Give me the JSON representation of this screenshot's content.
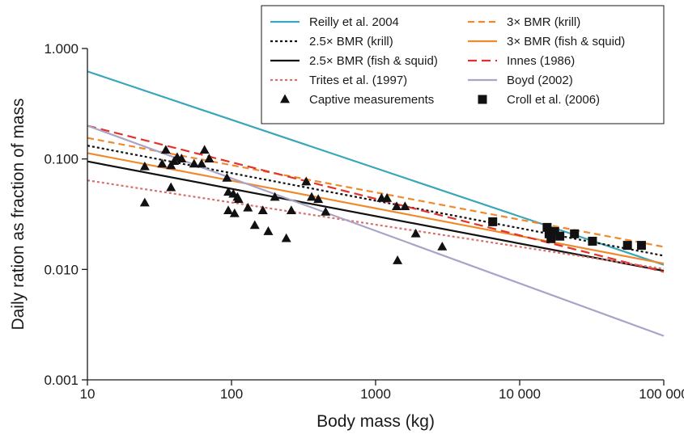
{
  "chart_data": {
    "type": "line",
    "x_scale": "log",
    "y_scale": "log",
    "xlim": [
      10,
      100000
    ],
    "ylim": [
      0.001,
      1.0
    ],
    "xlabel": "Body mass (kg)",
    "ylabel": "Daily ration as fraction of mass",
    "x_ticks": [
      {
        "value": 10,
        "label": "10"
      },
      {
        "value": 100,
        "label": "100"
      },
      {
        "value": 1000,
        "label": "1000"
      },
      {
        "value": 10000,
        "label": "10 000"
      },
      {
        "value": 100000,
        "label": "100 000"
      }
    ],
    "y_ticks": [
      {
        "value": 0.001,
        "label": "0.001"
      },
      {
        "value": 0.01,
        "label": "0.010"
      },
      {
        "value": 0.1,
        "label": "0.100"
      },
      {
        "value": 1.0,
        "label": "1.000"
      }
    ],
    "grid": false,
    "legend_position": "top-right",
    "series": [
      {
        "name": "Reilly et al. 2004",
        "kind": "line",
        "color": "#3aa6b9",
        "dash": "solid",
        "x": [
          10,
          100000
        ],
        "y": [
          0.62,
          0.011
        ]
      },
      {
        "name": "3× BMR (krill)",
        "kind": "line",
        "color": "#ef8a2c",
        "dash": "dashed",
        "x": [
          10,
          100000
        ],
        "y": [
          0.155,
          0.016
        ]
      },
      {
        "name": "2.5× BMR (krill)",
        "kind": "line",
        "color": "#111111",
        "dash": "dotted",
        "x": [
          10,
          100000
        ],
        "y": [
          0.132,
          0.0133
        ]
      },
      {
        "name": "3× BMR (fish & squid)",
        "kind": "line",
        "color": "#ef8a2c",
        "dash": "solid",
        "x": [
          10,
          100000
        ],
        "y": [
          0.113,
          0.0113
        ]
      },
      {
        "name": "2.5× BMR (fish & squid)",
        "kind": "line",
        "color": "#111111",
        "dash": "solid",
        "x": [
          10,
          100000
        ],
        "y": [
          0.095,
          0.0097
        ]
      },
      {
        "name": "Innes (1986)",
        "kind": "line",
        "color": "#e2332b",
        "dash": "longdash",
        "x": [
          10,
          100000
        ],
        "y": [
          0.2,
          0.0095
        ]
      },
      {
        "name": "Trites et al. (1997)",
        "kind": "line",
        "color": "#d9706b",
        "dash": "dotted",
        "x": [
          10,
          100000
        ],
        "y": [
          0.064,
          0.0101
        ]
      },
      {
        "name": "Boyd (2002)",
        "kind": "line",
        "color": "#a9a3c8",
        "dash": "solid",
        "x": [
          10,
          100000
        ],
        "y": [
          0.2,
          0.0025
        ]
      },
      {
        "name": "Captive measurements",
        "kind": "scatter",
        "marker": "triangle",
        "color": "#111111",
        "points": [
          [
            25,
            0.085
          ],
          [
            25,
            0.04
          ],
          [
            33,
            0.09
          ],
          [
            35,
            0.12
          ],
          [
            38,
            0.087
          ],
          [
            40,
            0.095
          ],
          [
            38,
            0.055
          ],
          [
            42,
            0.103
          ],
          [
            45,
            0.1
          ],
          [
            55,
            0.09
          ],
          [
            62,
            0.09
          ],
          [
            65,
            0.12
          ],
          [
            70,
            0.1
          ],
          [
            93,
            0.067
          ],
          [
            95,
            0.05
          ],
          [
            95,
            0.034
          ],
          [
            103,
            0.048
          ],
          [
            105,
            0.032
          ],
          [
            110,
            0.045
          ],
          [
            112,
            0.043
          ],
          [
            130,
            0.036
          ],
          [
            145,
            0.025
          ],
          [
            165,
            0.034
          ],
          [
            180,
            0.022
          ],
          [
            200,
            0.045
          ],
          [
            240,
            0.019
          ],
          [
            260,
            0.034
          ],
          [
            330,
            0.062
          ],
          [
            360,
            0.045
          ],
          [
            400,
            0.043
          ],
          [
            450,
            0.033
          ],
          [
            1100,
            0.044
          ],
          [
            1200,
            0.044
          ],
          [
            1400,
            0.037
          ],
          [
            1420,
            0.012
          ],
          [
            1600,
            0.037
          ],
          [
            1900,
            0.021
          ],
          [
            2900,
            0.016
          ]
        ]
      },
      {
        "name": "Croll et al. (2006)",
        "kind": "scatter",
        "marker": "square",
        "color": "#111111",
        "points": [
          [
            6500,
            0.027
          ],
          [
            15500,
            0.024
          ],
          [
            16000,
            0.021
          ],
          [
            16500,
            0.019
          ],
          [
            17500,
            0.022
          ],
          [
            19000,
            0.02
          ],
          [
            24000,
            0.021
          ],
          [
            32000,
            0.018
          ],
          [
            56000,
            0.0165
          ],
          [
            70000,
            0.0165
          ]
        ]
      }
    ],
    "legend": [
      {
        "label": "Reilly et al. 2004",
        "symbol": "line",
        "color": "#3aa6b9",
        "dash": "solid"
      },
      {
        "label": "3× BMR (krill)",
        "symbol": "line",
        "color": "#ef8a2c",
        "dash": "dashed"
      },
      {
        "label": "2.5× BMR (krill)",
        "symbol": "line",
        "color": "#111111",
        "dash": "dotted"
      },
      {
        "label": "3× BMR (fish & squid)",
        "symbol": "line",
        "color": "#ef8a2c",
        "dash": "solid"
      },
      {
        "label": "2.5× BMR (fish & squid)",
        "symbol": "line",
        "color": "#111111",
        "dash": "solid"
      },
      {
        "label": "Innes (1986)",
        "symbol": "line",
        "color": "#e2332b",
        "dash": "longdash"
      },
      {
        "label": "Trites et al. (1997)",
        "symbol": "line",
        "color": "#d9706b",
        "dash": "dotted"
      },
      {
        "label": "Boyd (2002)",
        "symbol": "line",
        "color": "#a9a3c8",
        "dash": "solid"
      },
      {
        "label": "Captive measurements",
        "symbol": "triangle",
        "color": "#111111"
      },
      {
        "label": "Croll et al. (2006)",
        "symbol": "square",
        "color": "#111111"
      }
    ]
  }
}
